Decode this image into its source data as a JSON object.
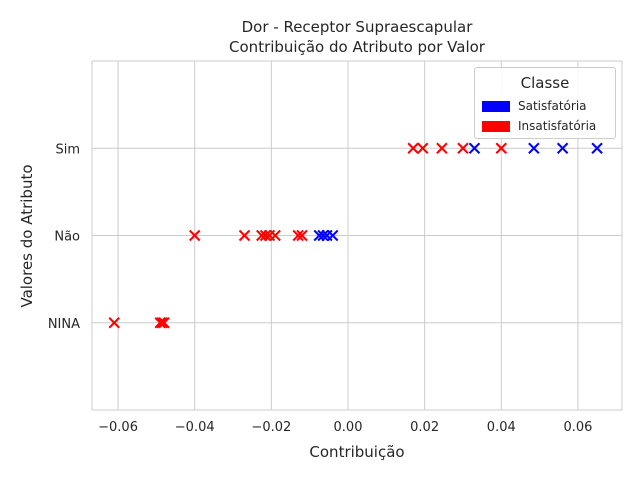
{
  "chart_data": {
    "type": "scatter",
    "title": "Dor - Receptor Supraescapular",
    "subtitle": "Contribuição do Atributo por Valor",
    "xlabel": "Contribuição",
    "ylabel": "Valores do Atributo",
    "xlim": [
      -0.0668,
      0.0715
    ],
    "x_ticks": [
      "−0.06",
      "−0.04",
      "−0.02",
      "0.00",
      "0.02",
      "0.04",
      "0.06"
    ],
    "x_tick_values": [
      -0.06,
      -0.04,
      -0.02,
      0.0,
      0.02,
      0.04,
      0.06
    ],
    "categories": [
      "NINA",
      "Não",
      "Sim"
    ],
    "grid": true,
    "marker": "x",
    "legend": {
      "title": "Classe",
      "placement": "top-right",
      "entries": [
        {
          "label": "Satisfatória",
          "color": "#0000ff"
        },
        {
          "label": "Insatisfatória",
          "color": "#ff0000"
        }
      ]
    },
    "series": [
      {
        "name": "Satisfatória",
        "color": "#0000ff",
        "points": [
          {
            "x": 0.033,
            "y": "Sim"
          },
          {
            "x": 0.0485,
            "y": "Sim"
          },
          {
            "x": 0.056,
            "y": "Sim"
          },
          {
            "x": 0.065,
            "y": "Sim"
          },
          {
            "x": -0.0075,
            "y": "Não"
          },
          {
            "x": -0.0065,
            "y": "Não"
          },
          {
            "x": -0.0055,
            "y": "Não"
          },
          {
            "x": -0.004,
            "y": "Não"
          }
        ]
      },
      {
        "name": "Insatisfatória",
        "color": "#ff0000",
        "points": [
          {
            "x": 0.017,
            "y": "Sim"
          },
          {
            "x": 0.0195,
            "y": "Sim"
          },
          {
            "x": 0.0245,
            "y": "Sim"
          },
          {
            "x": 0.03,
            "y": "Sim"
          },
          {
            "x": 0.04,
            "y": "Sim"
          },
          {
            "x": -0.04,
            "y": "Não"
          },
          {
            "x": -0.027,
            "y": "Não"
          },
          {
            "x": -0.0225,
            "y": "Não"
          },
          {
            "x": -0.0215,
            "y": "Não"
          },
          {
            "x": -0.0205,
            "y": "Não"
          },
          {
            "x": -0.019,
            "y": "Não"
          },
          {
            "x": -0.013,
            "y": "Não"
          },
          {
            "x": -0.012,
            "y": "Não"
          },
          {
            "x": -0.061,
            "y": "NINA"
          },
          {
            "x": -0.049,
            "y": "NINA"
          },
          {
            "x": -0.0485,
            "y": "NINA"
          },
          {
            "x": -0.048,
            "y": "NINA"
          }
        ]
      }
    ]
  }
}
